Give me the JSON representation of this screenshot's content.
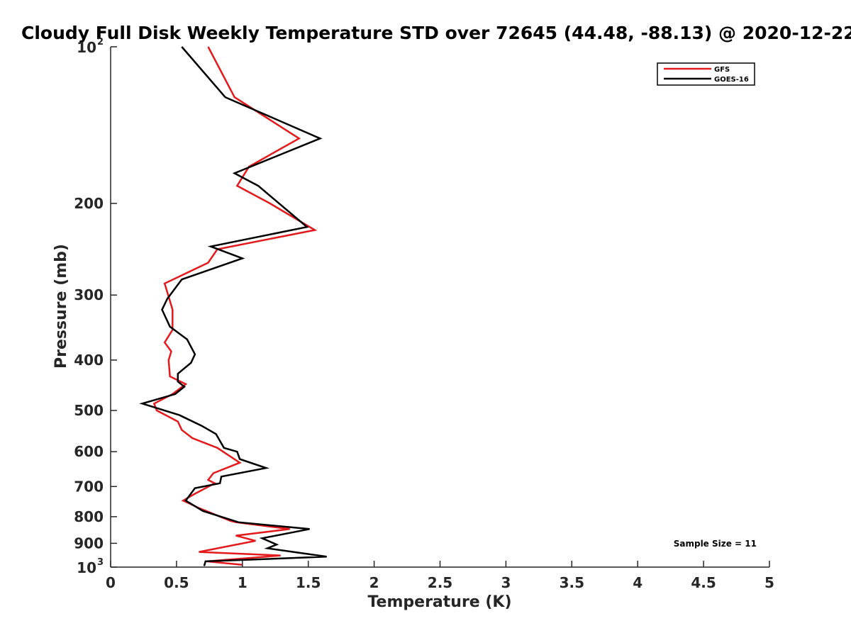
{
  "chart_data": {
    "type": "line",
    "title": "Cloudy Full Disk Weekly Temperature STD over 72645 (44.48, -88.13) @ 2020-12-22",
    "xlabel": "Temperature (K)",
    "ylabel": "Pressure (mb)",
    "xlim": [
      0,
      5
    ],
    "ylim": [
      100,
      1000
    ],
    "y_scale": "log",
    "y_reversed": true,
    "x_ticks": [
      0,
      0.5,
      1,
      1.5,
      2,
      2.5,
      3,
      3.5,
      4,
      4.5,
      5
    ],
    "x_tick_labels": [
      "0",
      "0.5",
      "1",
      "1.5",
      "2",
      "2.5",
      "3",
      "3.5",
      "4",
      "4.5",
      "5"
    ],
    "y_ticks": [
      {
        "value": 100,
        "label": "10",
        "exp": "2"
      },
      {
        "value": 200,
        "label": "200"
      },
      {
        "value": 300,
        "label": "300"
      },
      {
        "value": 400,
        "label": "400"
      },
      {
        "value": 500,
        "label": "500"
      },
      {
        "value": 600,
        "label": "600"
      },
      {
        "value": 700,
        "label": "700"
      },
      {
        "value": 800,
        "label": "800"
      },
      {
        "value": 900,
        "label": "900"
      },
      {
        "value": 1000,
        "label": "10",
        "exp": "3"
      }
    ],
    "grid": false,
    "legend_position": "top-right",
    "annotation": "Sample Size = 11",
    "series": [
      {
        "name": "GFS",
        "color": "#e31a1c",
        "points": [
          [
            0.74,
            100
          ],
          [
            0.94,
            125
          ],
          [
            1.43,
            150
          ],
          [
            1.05,
            170
          ],
          [
            0.96,
            185
          ],
          [
            1.21,
            200
          ],
          [
            1.55,
            225
          ],
          [
            0.81,
            245
          ],
          [
            0.74,
            260
          ],
          [
            0.41,
            285
          ],
          [
            0.47,
            320
          ],
          [
            0.47,
            350
          ],
          [
            0.41,
            370
          ],
          [
            0.46,
            385
          ],
          [
            0.44,
            400
          ],
          [
            0.45,
            430
          ],
          [
            0.57,
            445
          ],
          [
            0.47,
            465
          ],
          [
            0.33,
            485
          ],
          [
            0.35,
            500
          ],
          [
            0.51,
            525
          ],
          [
            0.54,
            545
          ],
          [
            0.62,
            565
          ],
          [
            0.81,
            590
          ],
          [
            0.98,
            630
          ],
          [
            0.78,
            660
          ],
          [
            0.74,
            680
          ],
          [
            0.79,
            690
          ],
          [
            0.63,
            725
          ],
          [
            0.55,
            745
          ],
          [
            0.6,
            755
          ],
          [
            0.67,
            770
          ],
          [
            0.91,
            815
          ],
          [
            0.95,
            820
          ],
          [
            1.36,
            845
          ],
          [
            0.95,
            870
          ],
          [
            1.1,
            890
          ],
          [
            0.67,
            935
          ],
          [
            1.29,
            950
          ],
          [
            0.73,
            975
          ],
          [
            1.0,
            990
          ]
        ]
      },
      {
        "name": "GOES-16",
        "color": "#000000",
        "points": [
          [
            0.54,
            100
          ],
          [
            0.87,
            125
          ],
          [
            1.59,
            150
          ],
          [
            0.94,
            175
          ],
          [
            1.12,
            185
          ],
          [
            1.49,
            222
          ],
          [
            0.76,
            242
          ],
          [
            1.0,
            255
          ],
          [
            0.54,
            280
          ],
          [
            0.43,
            305
          ],
          [
            0.39,
            320
          ],
          [
            0.45,
            345
          ],
          [
            0.58,
            365
          ],
          [
            0.64,
            390
          ],
          [
            0.61,
            405
          ],
          [
            0.51,
            425
          ],
          [
            0.51,
            440
          ],
          [
            0.56,
            450
          ],
          [
            0.49,
            465
          ],
          [
            0.24,
            485
          ],
          [
            0.52,
            510
          ],
          [
            0.69,
            535
          ],
          [
            0.8,
            555
          ],
          [
            0.86,
            590
          ],
          [
            0.96,
            600
          ],
          [
            0.98,
            620
          ],
          [
            1.18,
            645
          ],
          [
            0.84,
            670
          ],
          [
            0.83,
            690
          ],
          [
            0.64,
            705
          ],
          [
            0.57,
            745
          ],
          [
            0.7,
            780
          ],
          [
            0.97,
            820
          ],
          [
            1.51,
            845
          ],
          [
            1.15,
            880
          ],
          [
            1.26,
            905
          ],
          [
            1.19,
            920
          ],
          [
            1.64,
            955
          ],
          [
            0.72,
            975
          ],
          [
            0.71,
            995
          ]
        ]
      }
    ]
  }
}
